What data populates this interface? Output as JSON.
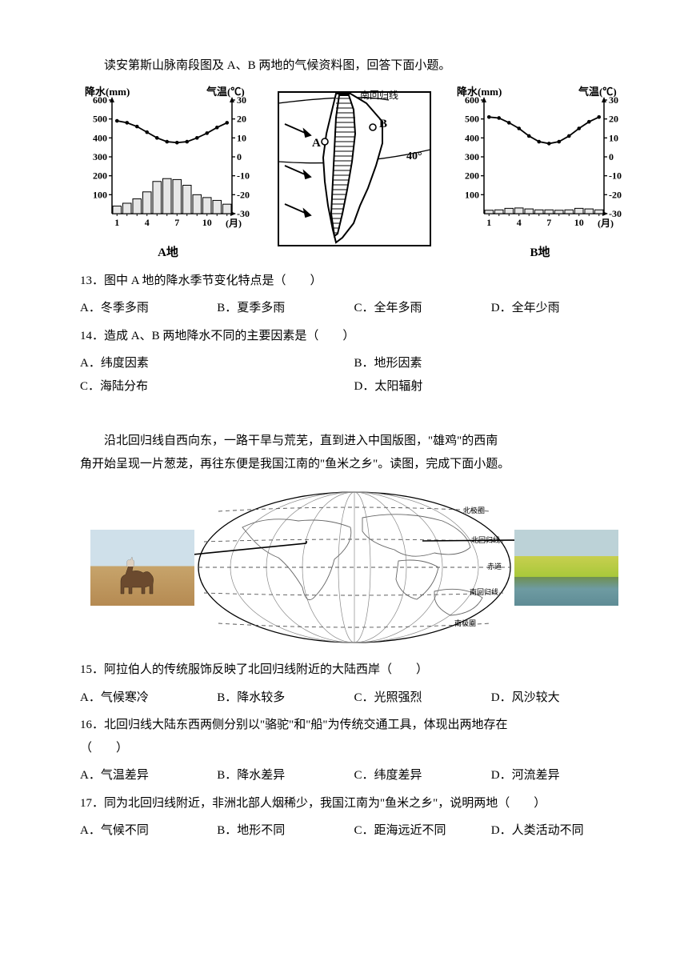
{
  "intro1": "读安第斯山脉南段图及 A、B 两地的气候资料图，回答下面小题。",
  "chartA": {
    "name": "A地",
    "precip_label": "降水(mm)",
    "temp_label": "气温(℃)",
    "x_label": "(月)",
    "x_ticks": [
      "1",
      "4",
      "7",
      "10"
    ],
    "precip_ticks": [
      "100",
      "200",
      "300",
      "400",
      "500",
      "600"
    ],
    "precip_max": 600,
    "temp_ticks": [
      "-30",
      "-20",
      "-10",
      "0",
      "10",
      "20",
      "30"
    ],
    "bars": [
      40,
      55,
      78,
      115,
      170,
      185,
      180,
      150,
      100,
      85,
      70,
      50
    ],
    "temp": [
      19,
      18,
      16,
      13,
      10,
      8,
      7.5,
      8,
      10,
      12.5,
      15.5,
      18
    ],
    "bar_color": "#e6e6e6",
    "bar_stroke": "#000000",
    "line_color": "#000000"
  },
  "chartB": {
    "name": "B地",
    "precip_label": "降水(mm)",
    "temp_label": "气温(℃)",
    "x_label": "(月)",
    "x_ticks": [
      "1",
      "4",
      "7",
      "10"
    ],
    "precip_ticks": [
      "100",
      "200",
      "300",
      "400",
      "500",
      "600"
    ],
    "precip_max": 600,
    "temp_ticks": [
      "-30",
      "-20",
      "-10",
      "0",
      "10",
      "20",
      "30"
    ],
    "bars": [
      18,
      20,
      28,
      30,
      25,
      20,
      20,
      18,
      20,
      28,
      25,
      20
    ],
    "temp": [
      21,
      20.5,
      18,
      15,
      11,
      8,
      7,
      8,
      11,
      15,
      18.5,
      21
    ],
    "bar_color": "#e6e6e6",
    "bar_stroke": "#000000",
    "line_color": "#000000"
  },
  "central_map": {
    "tropic_label": "南回归线",
    "lat_label": "40°",
    "A": "A",
    "B": "B"
  },
  "q13": {
    "stem": "13．图中 A 地的降水季节变化特点是（　　）",
    "A": "A．冬季多雨",
    "B": "B．夏季多雨",
    "C": "C．全年多雨",
    "D": "D．全年少雨"
  },
  "q14": {
    "stem": "14．造成 A、B 两地降水不同的主要因素是（　　）",
    "A": "A．纬度因素",
    "B": "B．地形因素",
    "C": "C．海陆分布",
    "D": "D．太阳辐射"
  },
  "intro2a": "沿北回归线自西向东，一路干旱与荒芜，直到进入中国版图，\"雄鸡\"的西南",
  "intro2b": "角开始呈现一片葱茏，再往东便是我国江南的\"鱼米之乡\"。读图，完成下面小题。",
  "world": {
    "tropic_n": "北回归线",
    "equator": "赤道",
    "tropic_s": "南回归线",
    "arctic": "北极圈",
    "antarctic": "南极圈"
  },
  "q15": {
    "stem": "15．阿拉伯人的传统服饰反映了北回归线附近的大陆西岸（　　）",
    "A": "A．气候寒冷",
    "B": "B．降水较多",
    "C": "C．光照强烈",
    "D": "D．风沙较大"
  },
  "q16": {
    "stem": "16．北回归线大陆东西两侧分别以\"骆驼\"和\"船\"为传统交通工具，体现出两地存在",
    "stem2": "（　　）",
    "A": "A．气温差异",
    "B": "B．降水差异",
    "C": "C．纬度差异",
    "D": "D．河流差异"
  },
  "q17": {
    "stem": "17．同为北回归线附近，非洲北部人烟稀少，我国江南为\"鱼米之乡\"，说明两地（　　）",
    "A": "A．气候不同",
    "B": "B．地形不同",
    "C": "C．距海远近不同",
    "D": "D．人类活动不同"
  }
}
